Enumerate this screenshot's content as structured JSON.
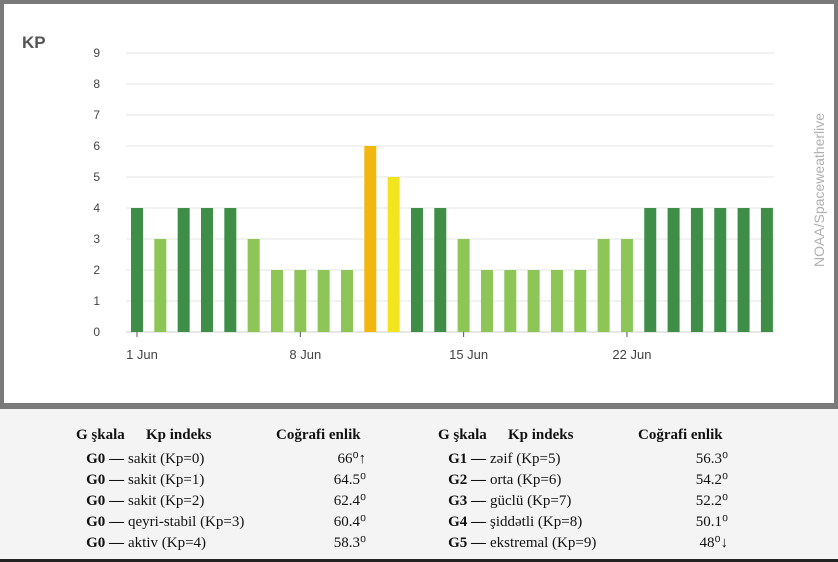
{
  "chart_data": {
    "type": "bar",
    "title": "KP",
    "watermark": "NOAA/Spaceweatherlive",
    "ylim": [
      0,
      9
    ],
    "yticks": [
      "0",
      "1",
      "2",
      "3",
      "4",
      "5",
      "6",
      "7",
      "8",
      "9"
    ],
    "xtick_labels": [
      {
        "day": 1,
        "label": "1 Jun"
      },
      {
        "day": 8,
        "label": "8 Jun"
      },
      {
        "day": 15,
        "label": "15 Jun"
      },
      {
        "day": 22,
        "label": "22 Jun"
      }
    ],
    "grid": true,
    "days": [
      1,
      2,
      3,
      4,
      5,
      6,
      7,
      8,
      9,
      10,
      11,
      12,
      13,
      14,
      15,
      16,
      17,
      18,
      19,
      20,
      21,
      22,
      23,
      24,
      25,
      26,
      27,
      28
    ],
    "values": [
      4,
      3,
      4,
      4,
      4,
      3,
      2,
      2,
      2,
      2,
      6,
      5,
      4,
      4,
      3,
      2,
      2,
      2,
      2,
      2,
      3,
      3,
      4,
      4,
      4,
      4,
      4,
      4
    ],
    "colors": {
      "kp_low": "#8dc556",
      "kp_4": "#3e8e48",
      "kp_5": "#f2e51e",
      "kp_6": "#f2b70f"
    }
  },
  "table": {
    "headers": [
      "G şkala",
      "Kp indeks",
      "Coğrafi enlik"
    ],
    "left_rows": [
      {
        "g": "G0 —",
        "kp": "sakit (Kp=0)",
        "lat": "66⁰↑"
      },
      {
        "g": "G0 —",
        "kp": "sakit (Kp=1)",
        "lat": "64.5⁰"
      },
      {
        "g": "G0 —",
        "kp": "sakit (Kp=2)",
        "lat": "62.4⁰"
      },
      {
        "g": "G0 —",
        "kp": "qeyri-stabil (Kp=3)",
        "lat": "60.4⁰"
      },
      {
        "g": "G0 —",
        "kp": "aktiv (Kp=4)",
        "lat": "58.3⁰"
      }
    ],
    "right_rows": [
      {
        "g": "G1 —",
        "kp": "zəif (Kp=5)",
        "lat": "56.3⁰"
      },
      {
        "g": "G2 —",
        "kp": "orta (Kp=6)",
        "lat": "54.2⁰"
      },
      {
        "g": "G3 —",
        "kp": "güclü (Kp=7)",
        "lat": "52.2⁰"
      },
      {
        "g": "G4 —",
        "kp": "şiddətli (Kp=8)",
        "lat": "50.1⁰"
      },
      {
        "g": "G5 —",
        "kp": "ekstremal (Kp=9)",
        "lat": "48⁰↓"
      }
    ]
  }
}
